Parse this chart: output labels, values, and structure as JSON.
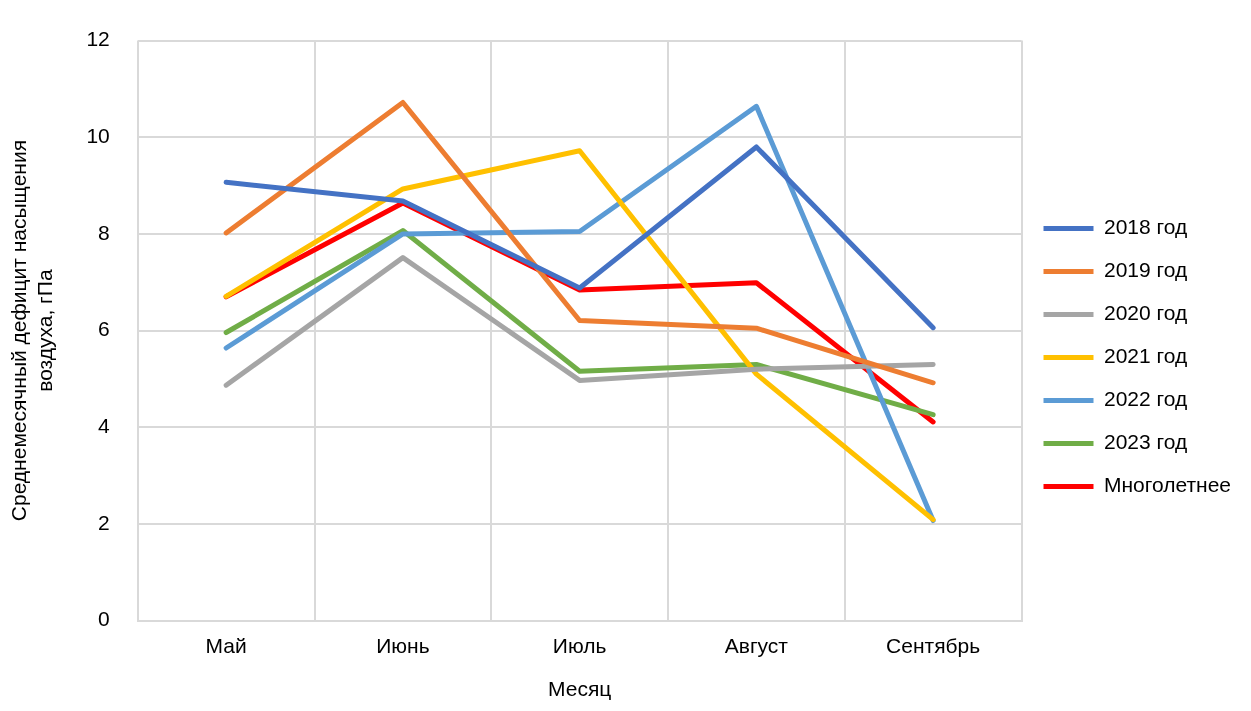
{
  "chart_data": {
    "type": "line",
    "xlabel": "Месяц",
    "ylabel": "Среднемесячный дефицит насыщения воздуха, гПа",
    "categories": [
      "Май",
      "Июнь",
      "Июль",
      "Август",
      "Сентябрь"
    ],
    "ylim": [
      0,
      12
    ],
    "yticks": [
      0,
      2,
      4,
      6,
      8,
      10,
      12
    ],
    "grid": true,
    "legend": "right",
    "marker": "none",
    "line_style": "solid",
    "series": [
      {
        "name": "2018 год",
        "color": "#4472c4",
        "values": [
          9.07,
          8.68,
          6.88,
          9.8,
          6.06
        ]
      },
      {
        "name": "2019 год",
        "color": "#ed7d31",
        "values": [
          8.02,
          10.72,
          6.21,
          6.05,
          4.92
        ]
      },
      {
        "name": "2020 год",
        "color": "#a5a5a5",
        "values": [
          4.87,
          7.51,
          4.97,
          5.2,
          5.3
        ]
      },
      {
        "name": "2021 год",
        "color": "#ffc000",
        "values": [
          6.71,
          8.93,
          9.72,
          5.1,
          2.09
        ]
      },
      {
        "name": "2022 год",
        "color": "#5b9bd5",
        "values": [
          5.64,
          8.0,
          8.05,
          10.64,
          2.07
        ]
      },
      {
        "name": "2023 год",
        "color": "#70ad47",
        "values": [
          5.96,
          8.07,
          5.16,
          5.3,
          4.26
        ]
      },
      {
        "name": "Многолетнее",
        "color": "#ff0000",
        "values": [
          6.7,
          8.64,
          6.84,
          6.99,
          4.11
        ]
      }
    ]
  }
}
